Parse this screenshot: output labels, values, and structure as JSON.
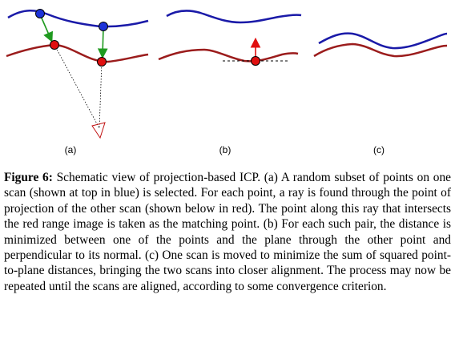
{
  "panels": {
    "a_label": "(a)",
    "b_label": "(b)",
    "c_label": "(c)"
  },
  "caption": {
    "label": "Figure 6:",
    "text": "Schematic view of projection-based ICP. (a) A random subset of points on one scan (shown at top in blue) is selected. For each point, a ray is found through the point of projection of the other scan (shown below in red). The point along this ray that intersects the red range image is taken as the matching point. (b) For each such pair, the distance is minimized between one of the points and the plane through the other point and perpendicular to its normal. (c) One scan is moved to minimize the sum of squared point-to-plane distances, bringing the two scans into closer alignment. The process may now be repeated until the scans are aligned, according to some convergence criterion."
  },
  "colors": {
    "blue_scan": "#1a1aa8",
    "red_scan": "#9b1c1c",
    "green_arrow": "#1f9a1f",
    "point_blue": "#1c32d8",
    "point_red": "#e01010"
  }
}
